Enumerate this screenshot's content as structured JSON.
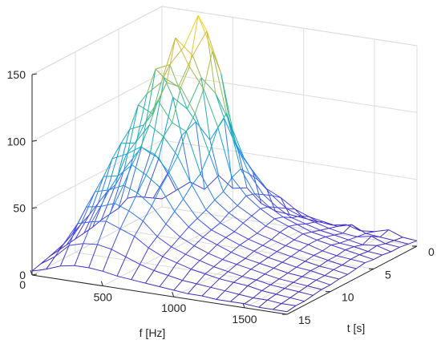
{
  "chart_data": {
    "type": "surface",
    "render": "mesh",
    "title": "",
    "xlabel": "f [Hz]",
    "ylabel": "t [s]",
    "zlabel": "",
    "x_ticks": [
      0,
      500,
      1000,
      1500
    ],
    "y_ticks": [
      0,
      5,
      10,
      15
    ],
    "z_ticks": [
      0,
      50,
      100,
      150
    ],
    "xlim": [
      0,
      1800
    ],
    "ylim": [
      0,
      15
    ],
    "zlim": [
      0,
      150
    ],
    "grid": true,
    "colormap": "parula",
    "colormap_stops": [
      "#3e26a8",
      "#4744e8",
      "#2f7df6",
      "#10a4d6",
      "#2db896",
      "#97bb54",
      "#e2b932",
      "#f9e61a"
    ],
    "f": [
      0,
      100,
      200,
      300,
      400,
      500,
      600,
      700,
      800,
      900,
      1000,
      1100,
      1200,
      1300,
      1400,
      1500,
      1600,
      1700,
      1800
    ],
    "t": [
      0,
      1,
      2,
      3,
      4,
      5,
      6,
      7,
      8,
      9,
      10,
      11,
      12,
      13,
      14,
      15
    ],
    "z": [
      [
        6,
        14,
        22,
        18,
        30,
        22,
        24,
        14,
        10,
        9,
        8,
        7,
        6,
        8,
        5,
        6,
        9,
        5,
        4
      ],
      [
        10,
        30,
        60,
        72,
        60,
        78,
        55,
        42,
        30,
        25,
        18,
        14,
        12,
        10,
        13,
        8,
        7,
        6,
        5
      ],
      [
        14,
        45,
        92,
        85,
        110,
        100,
        80,
        55,
        40,
        30,
        22,
        18,
        15,
        12,
        10,
        9,
        11,
        7,
        6
      ],
      [
        18,
        52,
        110,
        105,
        130,
        150,
        120,
        70,
        48,
        34,
        26,
        20,
        17,
        14,
        12,
        10,
        8,
        9,
        6
      ],
      [
        20,
        60,
        120,
        125,
        140,
        165,
        140,
        95,
        55,
        38,
        30,
        24,
        20,
        16,
        14,
        11,
        10,
        8,
        7
      ],
      [
        16,
        55,
        105,
        115,
        150,
        130,
        115,
        88,
        52,
        40,
        32,
        26,
        22,
        18,
        15,
        13,
        11,
        9,
        7
      ],
      [
        15,
        50,
        100,
        95,
        120,
        118,
        100,
        72,
        45,
        36,
        30,
        24,
        21,
        17,
        15,
        12,
        10,
        9,
        8
      ],
      [
        14,
        42,
        85,
        90,
        110,
        95,
        90,
        60,
        42,
        34,
        28,
        22,
        19,
        16,
        14,
        12,
        10,
        8,
        7
      ],
      [
        12,
        40,
        78,
        80,
        95,
        88,
        75,
        55,
        38,
        30,
        25,
        21,
        18,
        15,
        13,
        11,
        9,
        8,
        6
      ],
      [
        11,
        35,
        70,
        75,
        82,
        78,
        66,
        48,
        35,
        28,
        24,
        20,
        17,
        14,
        12,
        10,
        9,
        7,
        6
      ],
      [
        10,
        30,
        60,
        62,
        72,
        66,
        58,
        42,
        32,
        26,
        22,
        18,
        15,
        13,
        11,
        9,
        8,
        7,
        5
      ],
      [
        9,
        26,
        52,
        55,
        60,
        56,
        48,
        36,
        28,
        23,
        19,
        16,
        14,
        12,
        10,
        8,
        7,
        6,
        5
      ],
      [
        8,
        22,
        44,
        46,
        50,
        46,
        40,
        30,
        24,
        20,
        17,
        14,
        12,
        10,
        9,
        7,
        6,
        5,
        4
      ],
      [
        7,
        18,
        35,
        38,
        40,
        36,
        32,
        25,
        20,
        17,
        14,
        12,
        10,
        9,
        8,
        6,
        5,
        4,
        3
      ],
      [
        5,
        12,
        22,
        25,
        26,
        24,
        20,
        16,
        13,
        11,
        9,
        8,
        7,
        6,
        5,
        4,
        4,
        3,
        3
      ],
      [
        3,
        6,
        10,
        12,
        12,
        11,
        9,
        8,
        7,
        6,
        5,
        4,
        4,
        3,
        3,
        3,
        2,
        2,
        2
      ]
    ]
  }
}
